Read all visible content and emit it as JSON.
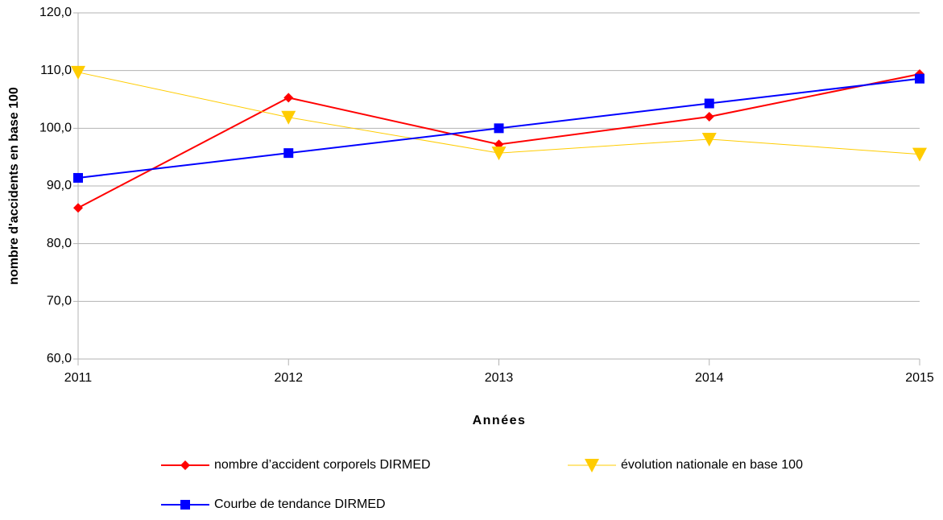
{
  "chart_data": {
    "type": "line",
    "x_label": "Années",
    "y_label": "nombre d'accidents en base 100",
    "categories": [
      "2011",
      "2012",
      "2013",
      "2014",
      "2015"
    ],
    "series": [
      {
        "name": "nombre d’accident corporels DIRMED",
        "color": "#ff0000",
        "marker": "diamond",
        "values": [
          86.2,
          105.3,
          97.2,
          102.0,
          109.4
        ]
      },
      {
        "name": "évolution nationale en base 100",
        "color": "#ffcc00",
        "marker": "triangle-down",
        "values": [
          109.7,
          101.9,
          95.7,
          98.1,
          95.5
        ]
      },
      {
        "name": "Courbe de tendance DIRMED",
        "color": "#0000ff",
        "marker": "square",
        "values": [
          91.4,
          95.7,
          100.0,
          104.3,
          108.6
        ]
      }
    ],
    "ylim": [
      60,
      120
    ],
    "yticks": [
      {
        "value": 60,
        "label": "60,0"
      },
      {
        "value": 70,
        "label": "70,0"
      },
      {
        "value": 80,
        "label": "80,0"
      },
      {
        "value": 90,
        "label": "90,0"
      },
      {
        "value": 100,
        "label": "100,0"
      },
      {
        "value": 110,
        "label": "110,0"
      },
      {
        "value": 120,
        "label": "120,0"
      }
    ],
    "grid": true,
    "legend": "bottom"
  }
}
